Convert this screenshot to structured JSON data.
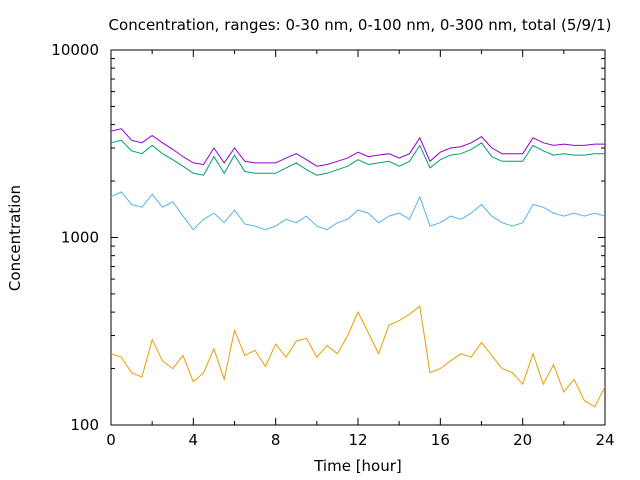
{
  "chart_data": {
    "type": "line",
    "title": "Concentration, ranges: 0-30 nm, 0-100 nm, 0-300 nm, total (5/9/1)",
    "xlabel": "Time [hour]",
    "ylabel": "Concentration",
    "xlim": [
      0,
      24
    ],
    "ylim": [
      100,
      10000
    ],
    "yscale": "log",
    "grid": false,
    "legend": "none",
    "x_ticks": [
      0,
      4,
      8,
      12,
      16,
      20,
      24
    ],
    "x_tick_labels": [
      "0",
      "4",
      "8",
      "12",
      "16",
      "20",
      "24"
    ],
    "y_ticks": [
      100,
      1000,
      10000
    ],
    "y_tick_labels": [
      "100",
      "1000",
      "10000"
    ],
    "x": [
      0,
      0.5,
      1,
      1.5,
      2,
      2.5,
      3,
      3.5,
      4,
      4.5,
      5,
      5.5,
      6,
      6.5,
      7,
      7.5,
      8,
      8.5,
      9,
      9.5,
      10,
      10.5,
      11,
      11.5,
      12,
      12.5,
      13,
      13.5,
      14,
      14.5,
      15,
      15.5,
      16,
      16.5,
      17,
      17.5,
      18,
      18.5,
      19,
      19.5,
      20,
      20.5,
      21,
      21.5,
      22,
      22.5,
      23,
      23.5,
      24
    ],
    "series": [
      {
        "color": "#e69f00",
        "values": [
          240,
          230,
          190,
          180,
          285,
          220,
          200,
          235,
          170,
          190,
          255,
          175,
          320,
          235,
          250,
          205,
          270,
          230,
          280,
          290,
          230,
          265,
          240,
          300,
          400,
          310,
          240,
          340,
          360,
          390,
          430,
          190,
          200,
          220,
          240,
          230,
          275,
          235,
          200,
          190,
          165,
          240,
          165,
          210,
          150,
          175,
          135,
          125,
          160
        ]
      },
      {
        "color": "#56b4e9",
        "values": [
          1650,
          1750,
          1500,
          1450,
          1700,
          1450,
          1550,
          1300,
          1100,
          1250,
          1350,
          1200,
          1400,
          1180,
          1150,
          1100,
          1150,
          1250,
          1200,
          1300,
          1150,
          1100,
          1200,
          1250,
          1400,
          1350,
          1200,
          1300,
          1350,
          1250,
          1650,
          1150,
          1200,
          1300,
          1250,
          1350,
          1500,
          1300,
          1200,
          1150,
          1200,
          1500,
          1450,
          1350,
          1300,
          1350,
          1300,
          1350,
          1300
        ]
      },
      {
        "color": "#009e73",
        "values": [
          3200,
          3300,
          2900,
          2800,
          3100,
          2800,
          2600,
          2400,
          2200,
          2150,
          2700,
          2200,
          2750,
          2250,
          2200,
          2200,
          2200,
          2350,
          2500,
          2300,
          2150,
          2200,
          2300,
          2400,
          2600,
          2450,
          2500,
          2550,
          2400,
          2550,
          3100,
          2350,
          2600,
          2750,
          2800,
          2950,
          3200,
          2700,
          2550,
          2550,
          2550,
          3100,
          2900,
          2750,
          2800,
          2750,
          2750,
          2800,
          2800
        ]
      },
      {
        "color": "#9400d3",
        "values": [
          3700,
          3800,
          3300,
          3200,
          3500,
          3200,
          2950,
          2700,
          2500,
          2450,
          3000,
          2500,
          3000,
          2550,
          2500,
          2500,
          2500,
          2650,
          2800,
          2600,
          2400,
          2450,
          2550,
          2650,
          2850,
          2700,
          2750,
          2800,
          2650,
          2800,
          3400,
          2550,
          2850,
          3000,
          3050,
          3200,
          3450,
          3000,
          2800,
          2800,
          2800,
          3400,
          3200,
          3100,
          3150,
          3100,
          3100,
          3150,
          3150
        ]
      }
    ]
  }
}
